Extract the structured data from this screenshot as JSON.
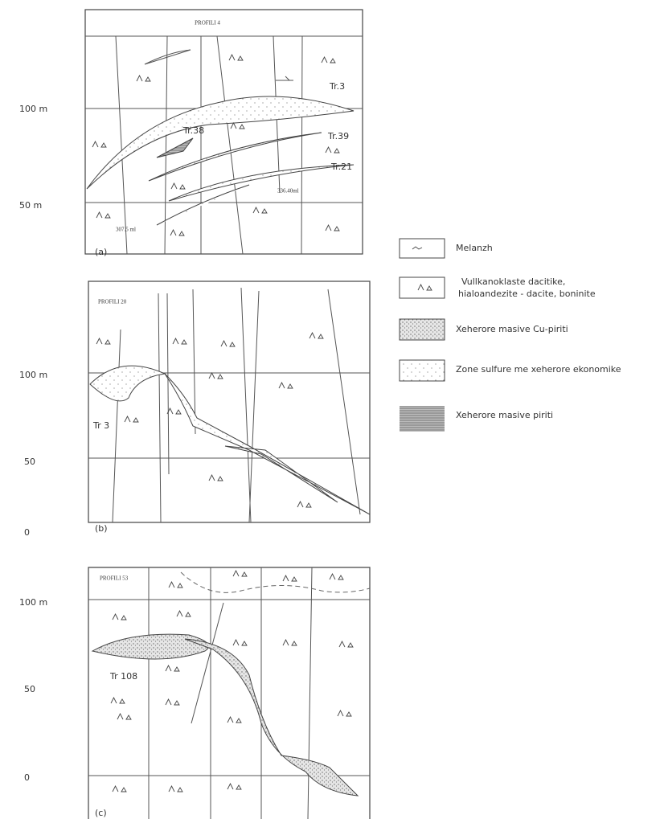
{
  "panels": [
    {
      "title": "PROFILI 4",
      "depths": [
        "100 m",
        "50 m"
      ],
      "labels": [
        "Tr.3",
        "Tr.38",
        "Tr.39",
        "Tr.21",
        "307.5 ml",
        "336.40ml"
      ],
      "tag": "(a)"
    },
    {
      "title": "PROFILI 20",
      "depths": [
        "100 m",
        "50",
        "0"
      ],
      "labels": [
        "Tr 3"
      ],
      "tag": "(b)"
    },
    {
      "title": "PROFILI 53",
      "depths": [
        "100 m",
        "50",
        "0"
      ],
      "labels": [
        "Tr 108"
      ],
      "tag": "(c)"
    }
  ],
  "legend": [
    "Melanzh",
    "Vullkanoklaste dacitike,",
    "hialoandezite - dacite, boninite",
    "Xeherore masive Cu-piriti",
    "Zone sulfure me xeherore ekonomike",
    "Xeherore masive piriti"
  ]
}
